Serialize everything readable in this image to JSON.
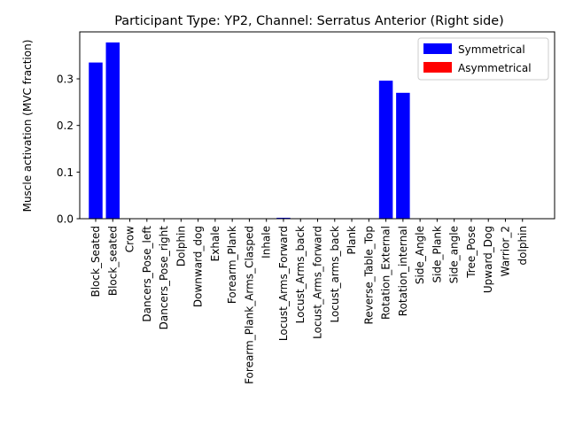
{
  "chart_data": {
    "type": "bar",
    "title": "Participant Type: YP2, Channel: Serratus Anterior (Right side)",
    "xlabel": "",
    "ylabel": "Muscle activation (MVC fraction)",
    "ylim": [
      0,
      0.4
    ],
    "yticks": [
      0.0,
      0.1,
      0.2,
      0.3
    ],
    "ytick_labels": [
      "0.0",
      "0.1",
      "0.2",
      "0.3"
    ],
    "grid": false,
    "legend_position": "top-right",
    "legend": [
      {
        "label": "Symmetrical",
        "color": "#0000ff"
      },
      {
        "label": "Asymmetrical",
        "color": "#ff0000"
      }
    ],
    "categories": [
      "Block_Seated",
      "Block_seated",
      "Crow",
      "Dancers_Pose_left",
      "Dancers_Pose_right",
      "Dolphin",
      "Downward_dog",
      "Exhale",
      "Forearm_Plank",
      "Forearm_Plank_Arms_Clasped",
      "Inhale",
      "Locust_Arms_Forward",
      "Locust_Arms_back",
      "Locust_Arms_forward",
      "Locust_arms_back",
      "Plank",
      "Reverse_Table_Top",
      "Rotation_External",
      "Rotation_internal",
      "Side_Angle",
      "Side_Plank",
      "Side_angle",
      "Tree_Pose",
      "Upward_Dog",
      "Warrior_2",
      "dolphin"
    ],
    "values": [
      0.335,
      0.378,
      0,
      0,
      0,
      0,
      0,
      0,
      0,
      0,
      0,
      0.002,
      0,
      0,
      0,
      0,
      0,
      0.296,
      0.27,
      0,
      0,
      0,
      0,
      0,
      0,
      0
    ],
    "bar_color": "#0000ff"
  }
}
